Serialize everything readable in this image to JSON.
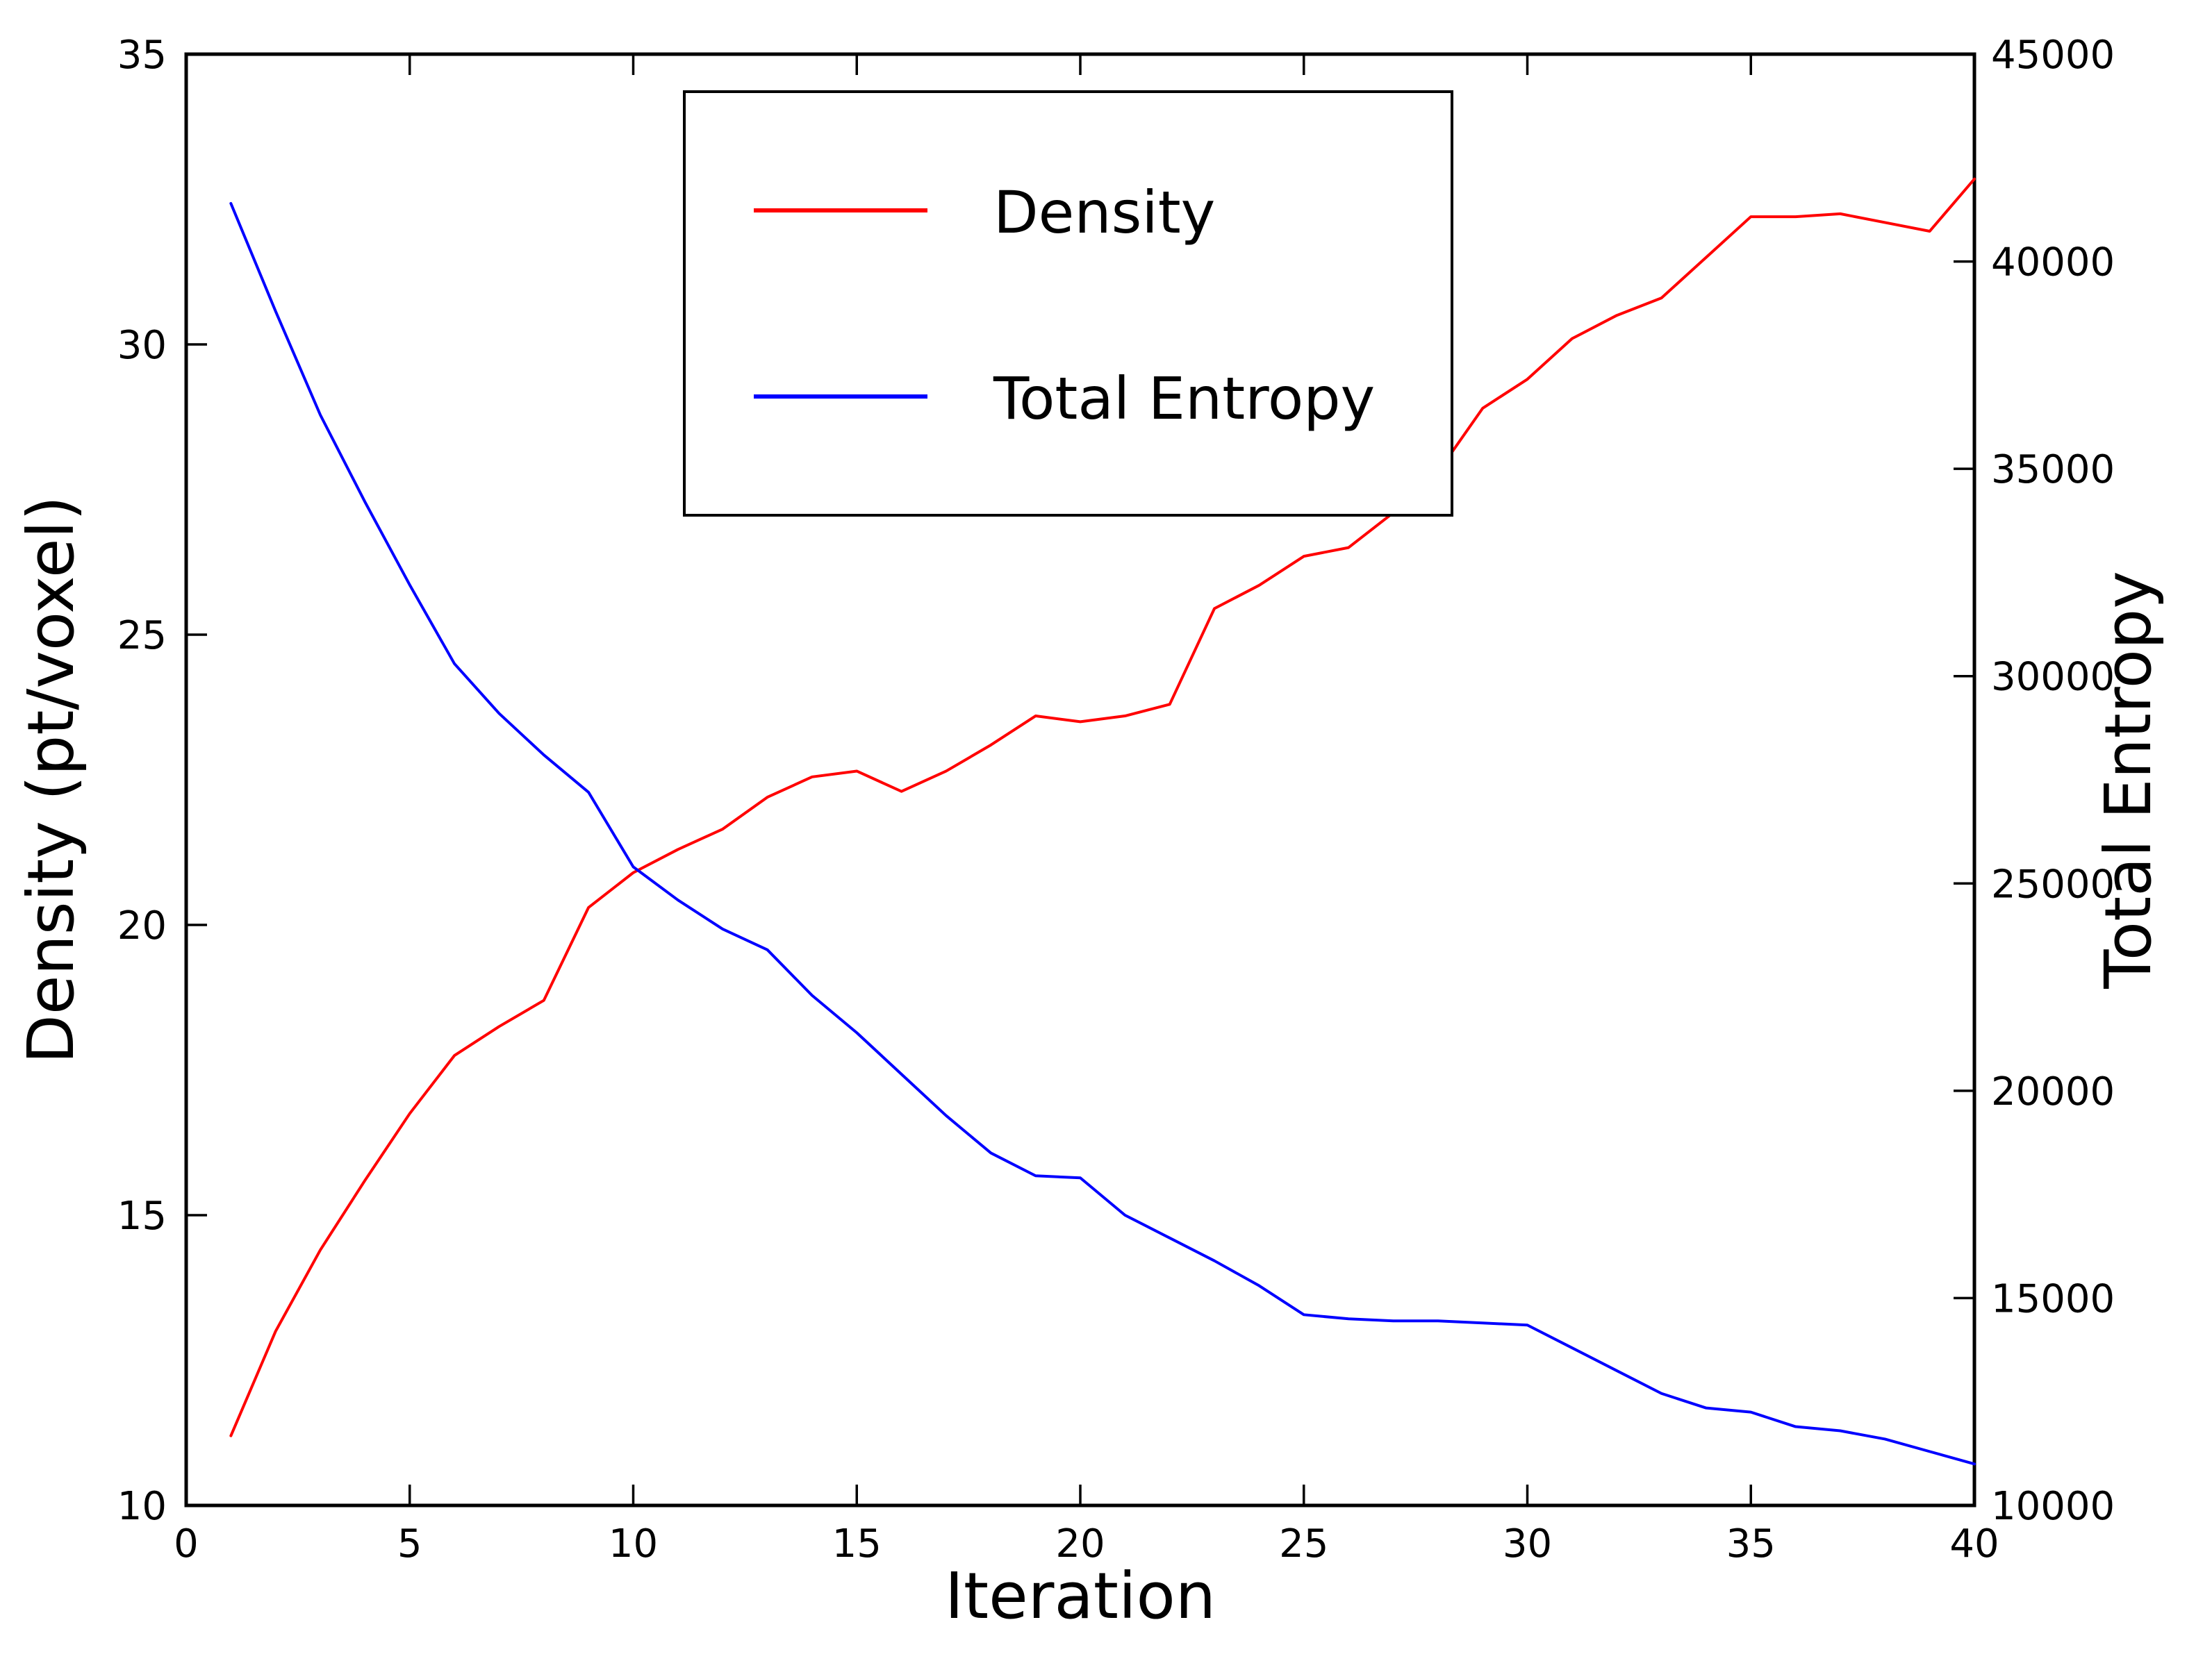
{
  "figure": {
    "background": "#ffffff",
    "frame_color": "#000000",
    "accent_red": "#ff0000",
    "accent_blue": "#0000ff"
  },
  "chart_data": {
    "type": "line",
    "title": "",
    "xlabel": "Iteration",
    "xlim": [
      0,
      40
    ],
    "x_ticks": [
      0,
      5,
      10,
      15,
      20,
      25,
      30,
      35,
      40
    ],
    "x_ticklabels": [
      "0",
      "5",
      "10",
      "15",
      "20",
      "25",
      "30",
      "35",
      "40"
    ],
    "left_axis": {
      "label": "Density (pt/voxel)",
      "color": "#ff0000",
      "lim": [
        10,
        35
      ],
      "ticks": [
        10,
        15,
        20,
        25,
        30,
        35
      ],
      "ticklabels": [
        "10",
        "15",
        "20",
        "25",
        "30",
        "35"
      ]
    },
    "right_axis": {
      "label": "Total Entropy",
      "color": "#0000ff",
      "lim": [
        10000,
        45000
      ],
      "ticks": [
        10000,
        15000,
        20000,
        25000,
        30000,
        35000,
        40000,
        45000
      ],
      "ticklabels": [
        "10000",
        "15000",
        "20000",
        "25000",
        "30000",
        "35000",
        "40000",
        "45000"
      ]
    },
    "x": [
      1,
      2,
      3,
      4,
      5,
      6,
      7,
      8,
      9,
      10,
      11,
      12,
      13,
      14,
      15,
      16,
      17,
      18,
      19,
      20,
      21,
      22,
      23,
      24,
      25,
      26,
      27,
      28,
      29,
      30,
      31,
      32,
      33,
      34,
      35,
      36,
      37,
      38,
      39,
      40
    ],
    "series": [
      {
        "name": "Density",
        "axis": "left",
        "color": "#ff0000",
        "values": [
          11.2,
          13.0,
          14.4,
          15.6,
          16.75,
          17.75,
          18.25,
          18.7,
          20.3,
          20.9,
          21.3,
          21.65,
          22.2,
          22.55,
          22.65,
          22.3,
          22.65,
          23.1,
          23.6,
          23.5,
          23.6,
          23.8,
          25.45,
          25.85,
          26.35,
          26.5,
          27.1,
          27.8,
          28.9,
          29.4,
          30.1,
          30.5,
          30.8,
          31.5,
          32.2,
          32.2,
          32.25,
          32.1,
          31.95,
          32.85
        ]
      },
      {
        "name": "Total Entropy",
        "axis": "right",
        "color": "#0000ff",
        "values": [
          41400,
          38800,
          36300,
          34200,
          32200,
          30300,
          29100,
          28100,
          27200,
          25400,
          24600,
          23900,
          23400,
          22300,
          21400,
          20400,
          19400,
          18500,
          17950,
          17900,
          17000,
          16450,
          15900,
          15300,
          14600,
          14500,
          14450,
          14450,
          14400,
          14350,
          13800,
          13250,
          12700,
          12350,
          12250,
          11900,
          11800,
          11600,
          11300,
          11000
        ]
      }
    ],
    "legend": {
      "position": "upper center",
      "entries": [
        "Density",
        "Total Entropy"
      ]
    },
    "grid": false
  }
}
